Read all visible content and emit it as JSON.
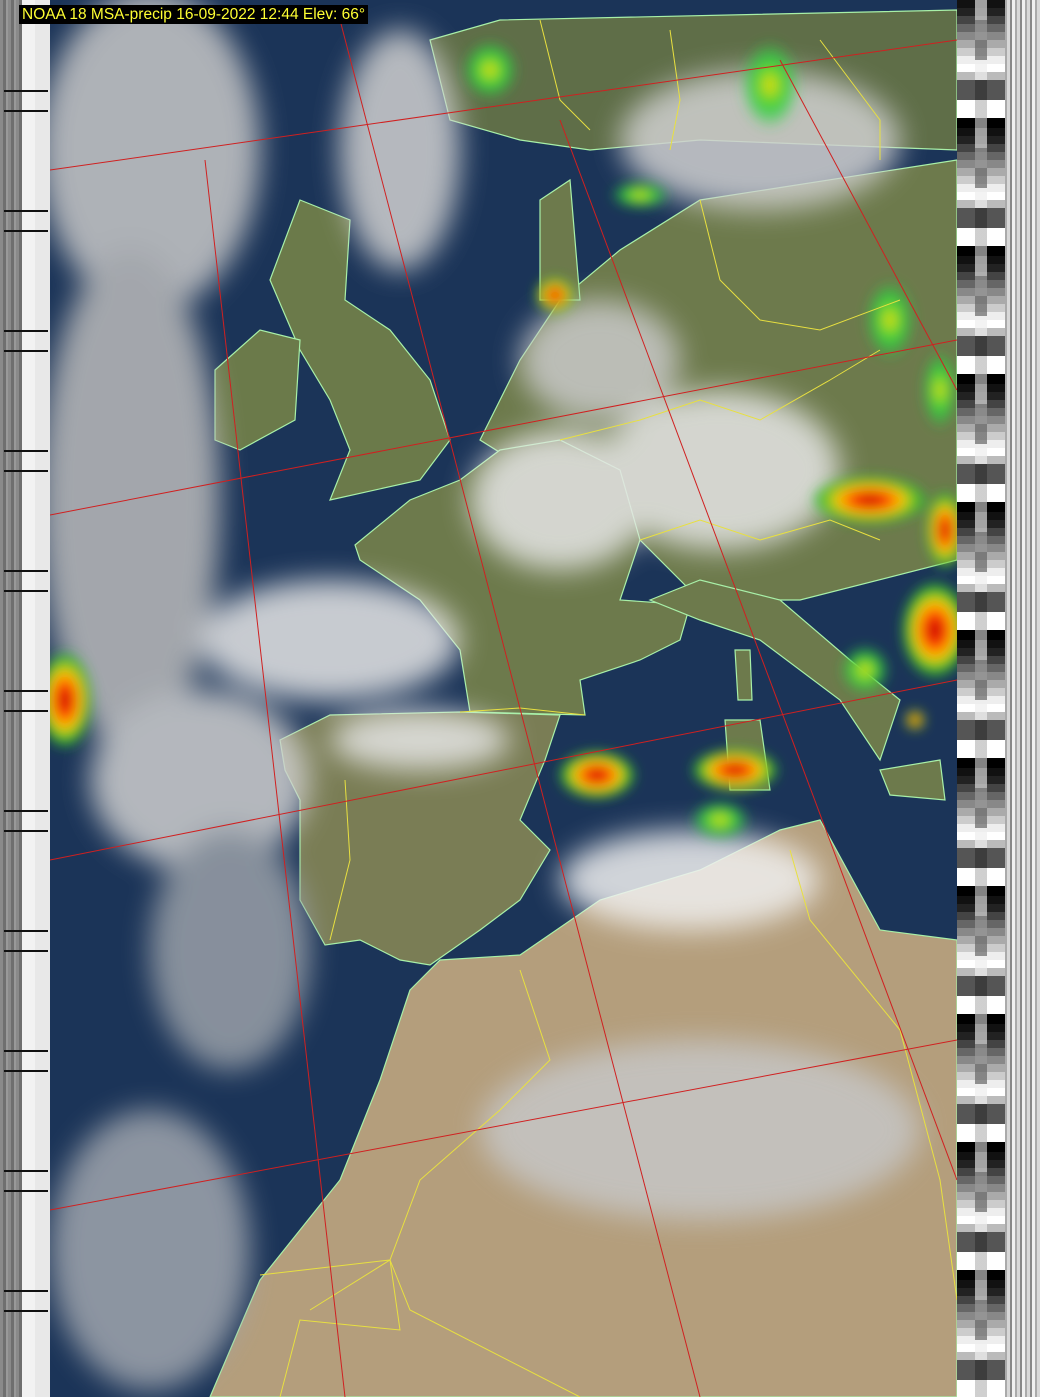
{
  "title": "NOAA 18 MSA-precip 16-09-2022 12:44 Elev: 66°",
  "colors": {
    "title_text": "#ffff33",
    "title_background": "#000000",
    "ocean": "#1b3458",
    "land": "#6d7a4c",
    "desert": "#b49e7c",
    "graticule": "#d02020",
    "borders": "#e8e040",
    "coastline": "#a8f0a8",
    "precip_heavy": "#c80000",
    "precip_medium": "#ffd000",
    "precip_light": "#30c030"
  }
}
